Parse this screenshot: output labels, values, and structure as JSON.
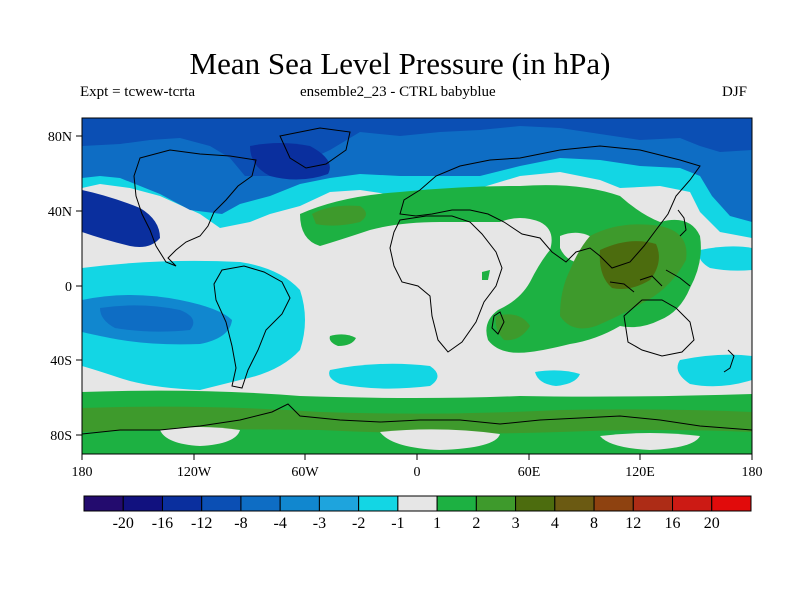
{
  "title": "Mean Sea Level Pressure (in hPa)",
  "subtitle_left": "Expt = tcwew-tcrta",
  "subtitle_center": "ensemble2_23 - CTRL babyblue",
  "subtitle_right": "DJF",
  "lat_labels": [
    "80N",
    "40N",
    "0",
    "40S",
    "80S"
  ],
  "lon_labels": [
    "180",
    "120W",
    "60W",
    "0",
    "60E",
    "120E",
    "180"
  ],
  "colorbar": {
    "colors": [
      "#230b6e",
      "#11117f",
      "#0a2f9e",
      "#0b4fb4",
      "#0e6dc4",
      "#1187cf",
      "#1ea4dd",
      "#13d6e4",
      "#e6e6e6",
      "#1db142",
      "#3e9a2c",
      "#4c6c0e",
      "#6b5a12",
      "#8e4210",
      "#ad2c16",
      "#cc1a14",
      "#e10b0b"
    ],
    "labels": [
      "-20",
      "-16",
      "-12",
      "-8",
      "-4",
      "-3",
      "-2",
      "-1",
      "1",
      "2",
      "3",
      "4",
      "8",
      "12",
      "16",
      "20"
    ]
  },
  "regions": [
    {
      "name": "arctic-low-band",
      "color": "#0e6dc4"
    },
    {
      "name": "north-pacific-low",
      "color": "#0b4fb4"
    },
    {
      "name": "tropical-pacific-cyan",
      "color": "#13d6e4"
    },
    {
      "name": "south-pacific-low",
      "color": "#0e6dc4"
    },
    {
      "name": "eurasia-high",
      "color": "#1db142"
    },
    {
      "name": "asia-indian-high-core",
      "color": "#4c6c0e"
    },
    {
      "name": "antarctic-high-band",
      "color": "#3e9a2c"
    }
  ]
}
